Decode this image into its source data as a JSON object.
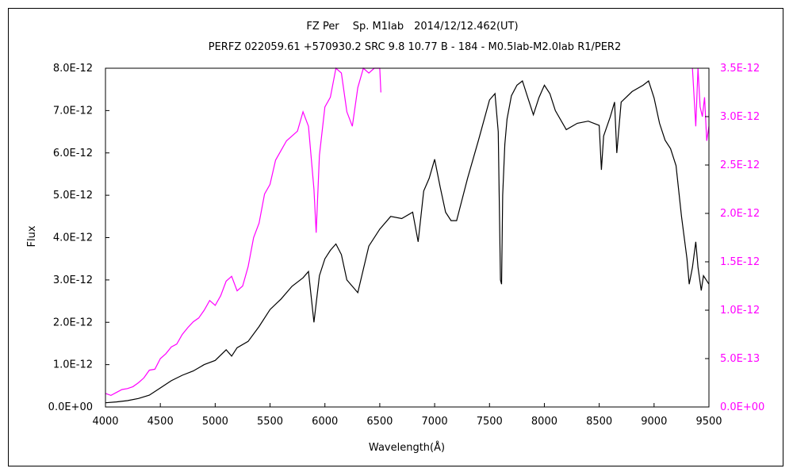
{
  "chart_data": {
    "type": "line",
    "title": "FZ Per　 Sp. M1Iab　2014/12/12.462(UT)",
    "subtitle": "PERFZ 022059.61 +570930.2 SRC 9.8 10.77 B - 184 - M0.5Iab-M2.0Iab R1/PER2",
    "xlabel": "Wavelength(Å)",
    "ylabel": "Flux",
    "xlim": [
      4000,
      9500
    ],
    "ylim": [
      0,
      8e-12
    ],
    "y2lim": [
      0,
      3.5e-12
    ],
    "grid": false,
    "xticks": [
      4000,
      4500,
      5000,
      5500,
      6000,
      6500,
      7000,
      7500,
      8000,
      8500,
      9000,
      9500
    ],
    "xtick_labels": [
      "4000",
      "4500",
      "5000",
      "5500",
      "6000",
      "6500",
      "7000",
      "7500",
      "8000",
      "8500",
      "9000",
      "9500"
    ],
    "yticks": [
      0,
      1e-12,
      2e-12,
      3e-12,
      4e-12,
      5e-12,
      6e-12,
      7e-12,
      8e-12
    ],
    "ytick_labels": [
      "0.0E+00",
      "1.0E-12",
      "2.0E-12",
      "3.0E-12",
      "4.0E-12",
      "5.0E-12",
      "6.0E-12",
      "7.0E-12",
      "8.0E-12"
    ],
    "y2ticks": [
      0,
      5e-13,
      1e-12,
      1.5e-12,
      2e-12,
      2.5e-12,
      3e-12,
      3.5e-12
    ],
    "y2tick_labels": [
      "0.0E+00",
      "5.0E-13",
      "1.0E-12",
      "1.5E-12",
      "2.0E-12",
      "2.5E-12",
      "3.0E-12",
      "3.5E-12"
    ],
    "series": [
      {
        "axis": "left",
        "color": "#000000",
        "x": [
          4000,
          4100,
          4200,
          4300,
          4400,
          4500,
          4600,
          4700,
          4800,
          4900,
          5000,
          5100,
          5150,
          5200,
          5300,
          5400,
          5500,
          5600,
          5700,
          5800,
          5850,
          5900,
          5950,
          6000,
          6050,
          6100,
          6150,
          6200,
          6300,
          6400,
          6500,
          6600,
          6700,
          6800,
          6850,
          6900,
          6950,
          7000,
          7050,
          7100,
          7150,
          7200,
          7300,
          7400,
          7500,
          7550,
          7580,
          7600,
          7610,
          7620,
          7640,
          7660,
          7700,
          7750,
          7800,
          7850,
          7900,
          7950,
          8000,
          8050,
          8100,
          8200,
          8300,
          8400,
          8500,
          8520,
          8540,
          8600,
          8640,
          8660,
          8700,
          8800,
          8900,
          8950,
          9000,
          9050,
          9100,
          9150,
          9200,
          9250,
          9300,
          9320,
          9350,
          9380,
          9400,
          9430,
          9450,
          9500
        ],
        "y": [
          1e-13,
          1.2e-13,
          1.5e-13,
          2e-13,
          2.8e-13,
          4.5e-13,
          6.2e-13,
          7.5e-13,
          8.5e-13,
          1e-12,
          1.1e-12,
          1.35e-12,
          1.2e-12,
          1.4e-12,
          1.55e-12,
          1.9e-12,
          2.3e-12,
          2.55e-12,
          2.85e-12,
          3.05e-12,
          3.2e-12,
          2e-12,
          3.1e-12,
          3.5e-12,
          3.7e-12,
          3.85e-12,
          3.6e-12,
          3e-12,
          2.7e-12,
          3.8e-12,
          4.2e-12,
          4.5e-12,
          4.45e-12,
          4.6e-12,
          3.9e-12,
          5.1e-12,
          5.4e-12,
          5.85e-12,
          5.2e-12,
          4.6e-12,
          4.4e-12,
          4.4e-12,
          5.4e-12,
          6.3e-12,
          7.25e-12,
          7.4e-12,
          6.5e-12,
          3e-12,
          2.9e-12,
          5e-12,
          6.2e-12,
          6.8e-12,
          7.35e-12,
          7.6e-12,
          7.7e-12,
          7.3e-12,
          6.9e-12,
          7.3e-12,
          7.6e-12,
          7.4e-12,
          7e-12,
          6.55e-12,
          6.7e-12,
          6.75e-12,
          6.65e-12,
          5.6e-12,
          6.4e-12,
          6.85e-12,
          7.2e-12,
          6e-12,
          7.2e-12,
          7.45e-12,
          7.6e-12,
          7.7e-12,
          7.3e-12,
          6.7e-12,
          6.3e-12,
          6.1e-12,
          5.7e-12,
          4.5e-12,
          3.5e-12,
          2.9e-12,
          3.3e-12,
          3.9e-12,
          3.3e-12,
          2.75e-12,
          3.1e-12,
          2.9e-12
        ]
      },
      {
        "axis": "right",
        "color": "#ff00ff",
        "x": [
          4000,
          4050,
          4100,
          4150,
          4200,
          4250,
          4300,
          4350,
          4400,
          4450,
          4500,
          4550,
          4600,
          4650,
          4700,
          4750,
          4800,
          4850,
          4900,
          4950,
          5000,
          5050,
          5100,
          5150,
          5200,
          5250,
          5300,
          5350,
          5400,
          5450,
          5500,
          5550,
          5600,
          5650,
          5700,
          5750,
          5800,
          5850,
          5900,
          5920,
          5950,
          6000,
          6050,
          6100,
          6150,
          6200,
          6250,
          6300,
          6350,
          6400,
          6450,
          6500,
          6510,
          9350,
          9380,
          9400,
          9420,
          9440,
          9460,
          9480,
          9500
        ],
        "y": [
          1.4e-13,
          1.2e-13,
          1.5e-13,
          1.8e-13,
          1.9e-13,
          2.1e-13,
          2.5e-13,
          3e-13,
          3.8e-13,
          3.9e-13,
          5e-13,
          5.5e-13,
          6.2e-13,
          6.5e-13,
          7.5e-13,
          8.2e-13,
          8.8e-13,
          9.2e-13,
          1e-12,
          1.1e-12,
          1.05e-12,
          1.15e-12,
          1.3e-12,
          1.35e-12,
          1.2e-12,
          1.25e-12,
          1.45e-12,
          1.75e-12,
          1.9e-12,
          2.2e-12,
          2.3e-12,
          2.55e-12,
          2.65e-12,
          2.75e-12,
          2.8e-12,
          2.85e-12,
          3.05e-12,
          2.9e-12,
          2.25e-12,
          1.8e-12,
          2.6e-12,
          3.1e-12,
          3.2e-12,
          3.5e-12,
          3.45e-12,
          3.05e-12,
          2.9e-12,
          3.3e-12,
          3.5e-12,
          3.45e-12,
          3.5e-12,
          3.5e-12,
          3.25e-12,
          3.5e-12,
          2.9e-12,
          3.5e-12,
          3.1e-12,
          3e-12,
          3.2e-12,
          2.75e-12,
          2.9e-12
        ]
      }
    ]
  }
}
